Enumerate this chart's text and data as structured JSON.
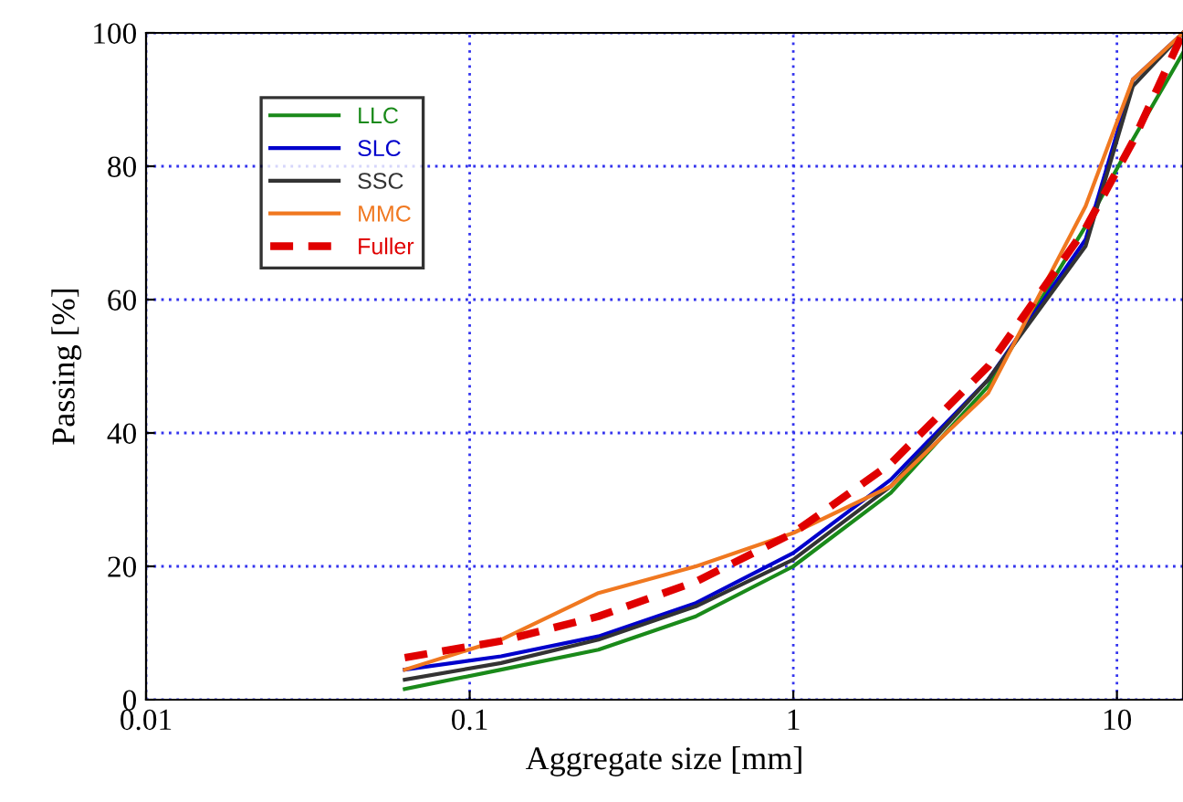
{
  "chart_data": {
    "type": "line",
    "xlabel": "Aggregate size [mm]",
    "ylabel": "Passing [%]",
    "log": "x",
    "x": [
      0.063,
      0.125,
      0.25,
      0.5,
      1,
      2,
      4,
      8,
      11.2,
      16
    ],
    "xlim": [
      0.01,
      16
    ],
    "xticks": [
      0.01,
      0.1,
      1,
      10
    ],
    "ylim": [
      0,
      100
    ],
    "yticks": [
      0,
      20,
      40,
      60,
      80,
      100
    ],
    "grid": true,
    "legend": "top left",
    "marker": "none",
    "series": [
      {
        "name": "LLC",
        "color": "#1a8a1a",
        "values": [
          1.6,
          4.5,
          7.5,
          12.5,
          20,
          31,
          47,
          71,
          84,
          97
        ]
      },
      {
        "name": "SLC",
        "color": "#0000cc",
        "values": [
          4.5,
          6.5,
          9.5,
          14.5,
          22,
          33,
          48,
          69,
          93,
          100
        ]
      },
      {
        "name": "SSC",
        "color": "#333333",
        "values": [
          3,
          5.5,
          9,
          14,
          21,
          32,
          48,
          68,
          92,
          100
        ]
      },
      {
        "name": "MMC",
        "color": "#f07820",
        "values": [
          4.5,
          9,
          16,
          20,
          25,
          32,
          46,
          74,
          93,
          100
        ]
      },
      {
        "name": "Fuller",
        "color": "#e00000",
        "line_style": "dashed",
        "values": [
          6.3,
          8.8,
          12.5,
          17.7,
          25,
          35.4,
          50,
          70.7,
          83.7,
          100
        ]
      }
    ]
  }
}
